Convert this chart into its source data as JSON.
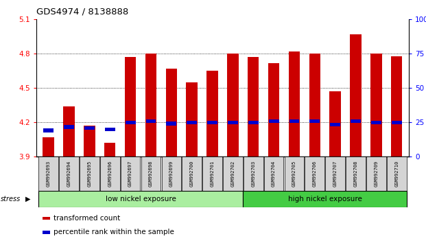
{
  "title": "GDS4974 / 8138888",
  "samples": [
    "GSM992693",
    "GSM992694",
    "GSM992695",
    "GSM992696",
    "GSM992697",
    "GSM992698",
    "GSM992699",
    "GSM992700",
    "GSM992701",
    "GSM992702",
    "GSM992703",
    "GSM992704",
    "GSM992705",
    "GSM992706",
    "GSM992707",
    "GSM992708",
    "GSM992709",
    "GSM992710"
  ],
  "red_values": [
    4.07,
    4.34,
    4.17,
    4.02,
    4.77,
    4.8,
    4.67,
    4.55,
    4.65,
    4.8,
    4.77,
    4.72,
    4.82,
    4.8,
    4.47,
    4.97,
    4.8,
    4.78
  ],
  "blue_values": [
    4.13,
    4.16,
    4.15,
    4.14,
    4.2,
    4.21,
    4.19,
    4.2,
    4.2,
    4.2,
    4.2,
    4.21,
    4.21,
    4.21,
    4.18,
    4.21,
    4.2,
    4.2
  ],
  "ylim": [
    3.9,
    5.1
  ],
  "yticks_red": [
    3.9,
    4.2,
    4.5,
    4.8,
    5.1
  ],
  "yticks_blue": [
    0,
    25,
    50,
    75,
    100
  ],
  "bar_color": "#cc0000",
  "blue_color": "#0000cc",
  "group1_label": "low nickel exposure",
  "group2_label": "high nickel exposure",
  "group1_count": 10,
  "group2_count": 8,
  "stress_label": "stress",
  "legend1": "transformed count",
  "legend2": "percentile rank within the sample",
  "group1_color": "#aaeea0",
  "group2_color": "#44cc44",
  "label_bg": "#d4d4d4",
  "bar_width": 0.55
}
